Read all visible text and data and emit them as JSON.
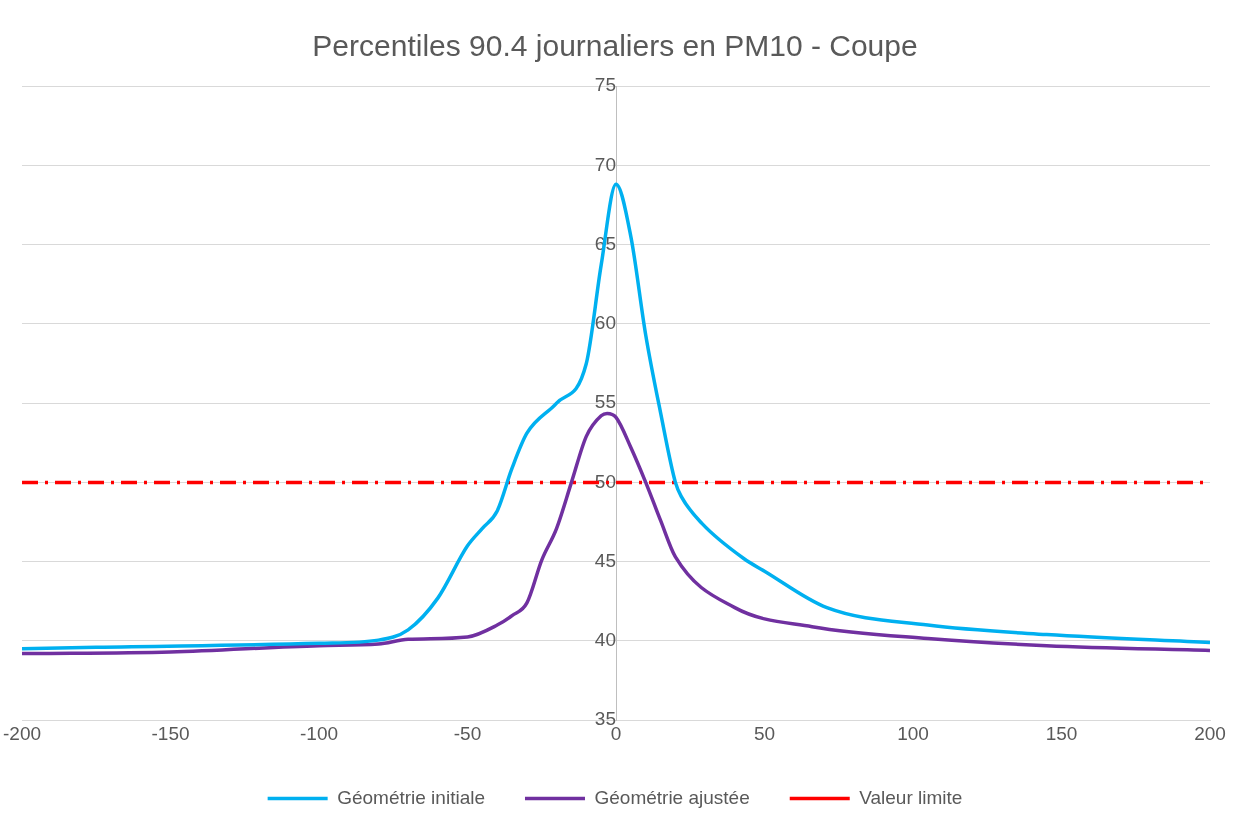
{
  "chart_data": {
    "type": "line",
    "title": "Percentiles 90.4 journaliers en PM10 - Coupe",
    "xlim": [
      -200,
      200
    ],
    "xticks": [
      -200,
      -150,
      -100,
      -50,
      0,
      50,
      100,
      150,
      200
    ],
    "ylim": [
      35,
      75
    ],
    "yticks": [
      35,
      40,
      45,
      50,
      55,
      60,
      65,
      70,
      75
    ],
    "grid": "y",
    "legend": "bottom",
    "marker": "none",
    "line_style": "solid",
    "series": [
      {
        "name": "Géométrie initiale",
        "color": "#00b0f0",
        "x": [
          -200,
          -175,
          -100,
          -80,
          -70,
          -60,
          -50,
          -45,
          -40,
          -35,
          -30,
          -20,
          -10,
          -5,
          0,
          5,
          10,
          15,
          20,
          22,
          29,
          43,
          50,
          71,
          105,
          145,
          200
        ],
        "values": [
          39.5,
          39.6,
          39.85,
          40.05,
          40.7,
          42.7,
          46.0,
          47.1,
          48.2,
          50.9,
          53.1,
          55.0,
          57.5,
          63.7,
          68.8,
          65.5,
          59.3,
          54.4,
          50.0,
          49.1,
          47.4,
          45.2,
          44.4,
          42.1,
          41.0,
          40.4,
          39.9
        ]
      },
      {
        "name": "Géométrie ajustée",
        "color": "#7030a0",
        "x": [
          -200,
          -150,
          -100,
          -80,
          -70,
          -50,
          -40,
          -35,
          -30,
          -25,
          -20,
          -15,
          -10,
          -5,
          -3,
          0,
          5,
          10,
          15,
          20,
          40,
          66,
          105,
          145,
          200
        ],
        "values": [
          39.2,
          39.3,
          39.7,
          39.8,
          40.1,
          40.25,
          41.0,
          41.6,
          42.4,
          45.1,
          47.1,
          50.0,
          52.9,
          54.2,
          54.35,
          54.1,
          52.2,
          50.0,
          47.6,
          45.3,
          42.1,
          40.9,
          40.15,
          39.7,
          39.4
        ]
      }
    ],
    "ref_lines": [
      {
        "axis": "y",
        "value": 50,
        "label": "Valeur limite",
        "color": "#ff0000",
        "line_style": "dashdot"
      }
    ]
  }
}
